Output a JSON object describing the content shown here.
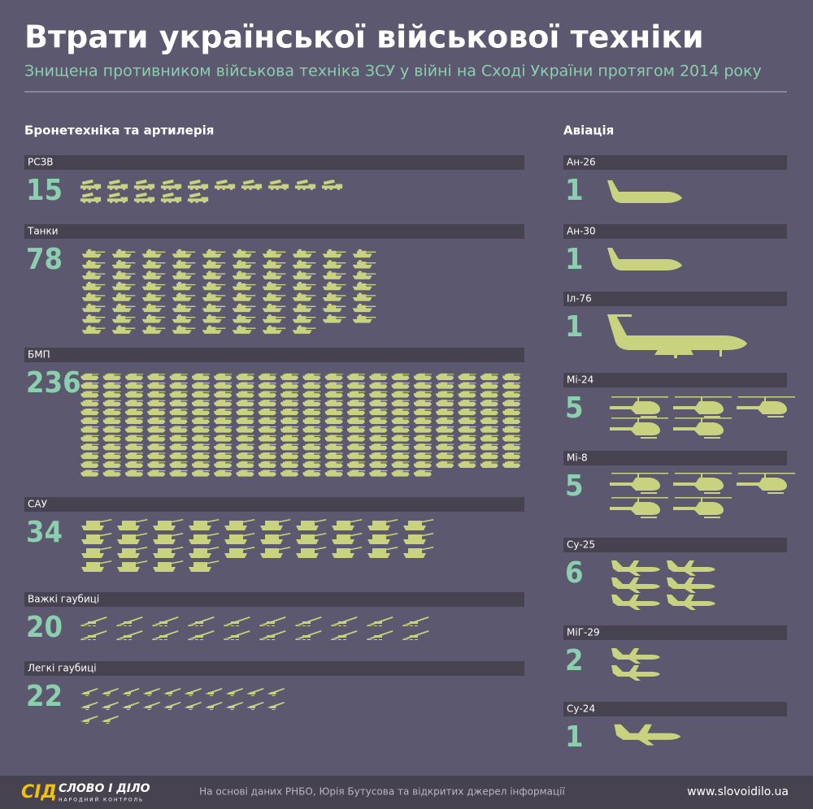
{
  "header": {
    "title": "Втрати української військової техніки",
    "subtitle": "Знищена противником військова техніка ЗСУ у війні на Сході України протягом 2014 року"
  },
  "sections": [
    {
      "title": "Бронетехніка та артилерія",
      "items": [
        {
          "label": "РСЗВ",
          "count": 15
        },
        {
          "label": "Танки",
          "count": 78
        },
        {
          "label": "БМП",
          "count": 236
        },
        {
          "label": "САУ",
          "count": 34
        },
        {
          "label": "Важкі гаубиці",
          "count": 20
        },
        {
          "label": "Легкі гаубиці",
          "count": 22
        }
      ]
    },
    {
      "title": "Авіація",
      "items": [
        {
          "label": "Ан-26",
          "count": 1
        },
        {
          "label": "Ан-30",
          "count": 1
        },
        {
          "label": "Іл-76",
          "count": 1
        },
        {
          "label": "Мі-24",
          "count": 5
        },
        {
          "label": "Мі-8",
          "count": 5
        },
        {
          "label": "Су-25",
          "count": 6
        },
        {
          "label": "МіГ-29",
          "count": 2
        },
        {
          "label": "Су-24",
          "count": 1
        }
      ]
    }
  ],
  "footer": {
    "logo_mark": "СІД",
    "logo": "СЛОВО І ДІЛО",
    "logo_tagline": "НАРОДНИЙ КОНТРОЛЬ",
    "source": "На основі даних РНБО, Юрія Бутусова та відкритих джерел інформації",
    "url": "www.slovoidilo.ua"
  }
}
